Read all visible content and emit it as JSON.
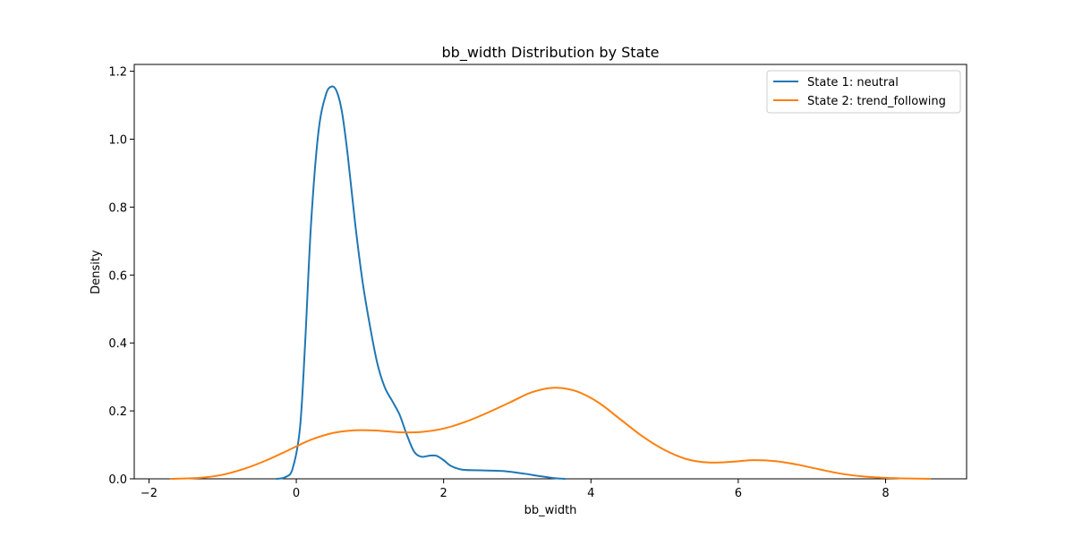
{
  "chart_data": {
    "type": "line",
    "title": "bb_width Distribution by State",
    "xlabel": "bb_width",
    "ylabel": "Density",
    "xlim": [
      -2.2,
      9.1
    ],
    "ylim": [
      0,
      1.22
    ],
    "xticks": [
      -2,
      0,
      2,
      4,
      6,
      8
    ],
    "yticks": [
      0.0,
      0.2,
      0.4,
      0.6,
      0.8,
      1.0,
      1.2
    ],
    "xtick_labels": [
      "−2",
      "0",
      "2",
      "4",
      "6",
      "8"
    ],
    "ytick_labels": [
      "0.0",
      "0.2",
      "0.4",
      "0.6",
      "0.8",
      "1.0",
      "1.2"
    ],
    "grid": false,
    "legend_position": "top-right",
    "series": [
      {
        "name": "State 1: neutral",
        "color": "#1f77b4",
        "points": [
          [
            -0.27,
            0.0
          ],
          [
            -0.15,
            0.005
          ],
          [
            -0.05,
            0.03
          ],
          [
            0.05,
            0.15
          ],
          [
            0.12,
            0.4
          ],
          [
            0.2,
            0.75
          ],
          [
            0.3,
            1.02
          ],
          [
            0.4,
            1.13
          ],
          [
            0.48,
            1.155
          ],
          [
            0.55,
            1.14
          ],
          [
            0.62,
            1.08
          ],
          [
            0.7,
            0.95
          ],
          [
            0.8,
            0.75
          ],
          [
            0.9,
            0.58
          ],
          [
            1.0,
            0.45
          ],
          [
            1.1,
            0.34
          ],
          [
            1.2,
            0.27
          ],
          [
            1.3,
            0.23
          ],
          [
            1.4,
            0.19
          ],
          [
            1.5,
            0.13
          ],
          [
            1.6,
            0.08
          ],
          [
            1.7,
            0.065
          ],
          [
            1.8,
            0.068
          ],
          [
            1.9,
            0.068
          ],
          [
            2.0,
            0.055
          ],
          [
            2.1,
            0.038
          ],
          [
            2.25,
            0.027
          ],
          [
            2.5,
            0.025
          ],
          [
            2.8,
            0.023
          ],
          [
            3.1,
            0.015
          ],
          [
            3.3,
            0.008
          ],
          [
            3.5,
            0.002
          ],
          [
            3.65,
            0.0
          ]
        ]
      },
      {
        "name": "State 2: trend_following",
        "color": "#ff7f0e",
        "points": [
          [
            -1.7,
            0.0
          ],
          [
            -1.3,
            0.003
          ],
          [
            -1.0,
            0.012
          ],
          [
            -0.7,
            0.03
          ],
          [
            -0.4,
            0.055
          ],
          [
            -0.1,
            0.085
          ],
          [
            0.2,
            0.115
          ],
          [
            0.5,
            0.135
          ],
          [
            0.8,
            0.143
          ],
          [
            1.1,
            0.142
          ],
          [
            1.4,
            0.137
          ],
          [
            1.7,
            0.138
          ],
          [
            2.0,
            0.148
          ],
          [
            2.3,
            0.168
          ],
          [
            2.6,
            0.195
          ],
          [
            2.9,
            0.225
          ],
          [
            3.2,
            0.255
          ],
          [
            3.5,
            0.268
          ],
          [
            3.8,
            0.258
          ],
          [
            4.1,
            0.225
          ],
          [
            4.4,
            0.175
          ],
          [
            4.7,
            0.125
          ],
          [
            5.0,
            0.085
          ],
          [
            5.3,
            0.058
          ],
          [
            5.6,
            0.048
          ],
          [
            5.9,
            0.05
          ],
          [
            6.2,
            0.055
          ],
          [
            6.5,
            0.052
          ],
          [
            6.8,
            0.042
          ],
          [
            7.1,
            0.028
          ],
          [
            7.4,
            0.015
          ],
          [
            7.7,
            0.007
          ],
          [
            8.0,
            0.003
          ],
          [
            8.3,
            0.001
          ],
          [
            8.6,
            0.0
          ]
        ]
      }
    ]
  }
}
